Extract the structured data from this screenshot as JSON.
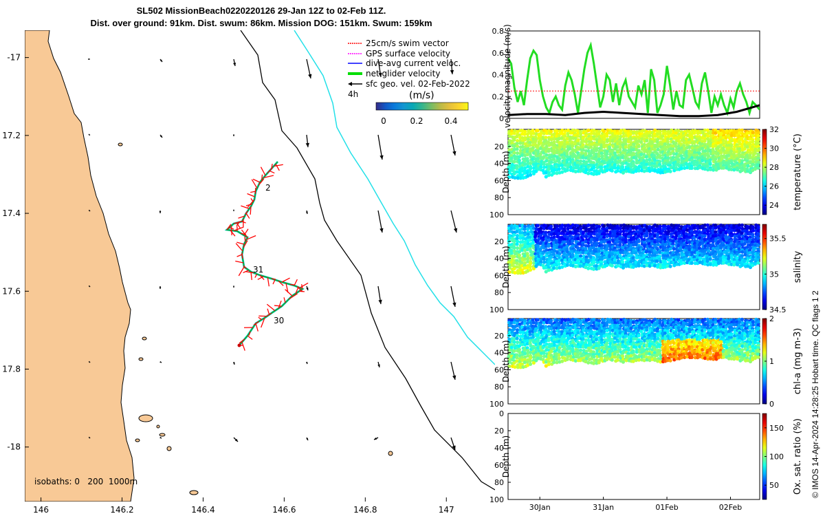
{
  "header": {
    "title_line1": "SL502 MissionBeach0220220126 29-Jan 12Z to 02-Feb 11Z.",
    "title_line2": "Dist. over ground: 91km. Dist. swum: 86km. Mission DOG: 151km. Swum: 159km"
  },
  "side_note": "© IMOS 14-Apr-2024 14:28:25 Hobart time. QC flags 1  2",
  "chart_data": [
    {
      "type": "map",
      "xticks": [
        "146",
        "146.2",
        "146.4",
        "146.6",
        "146.8",
        "147"
      ],
      "yticks": [
        "-17",
        "17.2",
        "17.4",
        "17.6",
        "17.8",
        "-18"
      ],
      "xlim": [
        145.96,
        147.12
      ],
      "ylim": [
        -18.14,
        -16.93
      ],
      "legend": {
        "entries": [
          {
            "label": "25cm/s swim vector",
            "color": "#ff0000"
          },
          {
            "label": "GPS surface velocity",
            "color": "#ff00ff"
          },
          {
            "label": "dive-avg current veloc.",
            "color": "#0000ff"
          },
          {
            "label": "net glider velocity",
            "color": "#00dd00"
          },
          {
            "label": "sfc geo. vel. 02-Feb-2022",
            "color": "#000000"
          }
        ],
        "scale_label": "4h",
        "colorbar_title": "(m/s)",
        "colorbar_ticks": [
          "0",
          "0.2",
          "0.4"
        ],
        "placement": "top-right"
      },
      "track_labels": [
        "2",
        "31",
        "30"
      ],
      "isobath_label": "isobaths: 0   200  1000m",
      "colors": {
        "land": "#f8c996",
        "isobath_200": "#000000",
        "isobath_1000": "#22e0e8",
        "track": "#ff0000"
      }
    },
    {
      "type": "line",
      "ylabel": "velocity magnitude (m/s)",
      "ylim": [
        0,
        0.8
      ],
      "yticks": [
        "0",
        "0.2",
        "0.4",
        "0.6",
        "0.8"
      ],
      "x_range_days": [
        29.5,
        33.46
      ],
      "series": [
        {
          "color": "#22dd22",
          "x": [
            29.5,
            29.55,
            29.6,
            29.65,
            29.7,
            29.75,
            29.8,
            29.85,
            29.9,
            29.95,
            30.0,
            30.05,
            30.1,
            30.15,
            30.2,
            30.25,
            30.3,
            30.35,
            30.4,
            30.45,
            30.5,
            30.55,
            30.6,
            30.65,
            30.7,
            30.75,
            30.8,
            30.85,
            30.9,
            30.95,
            31.0,
            31.05,
            31.1,
            31.15,
            31.2,
            31.25,
            31.3,
            31.35,
            31.4,
            31.45,
            31.5,
            31.55,
            31.6,
            31.65,
            31.7,
            31.75,
            31.8,
            31.85,
            31.9,
            31.95,
            32.0,
            32.05,
            32.1,
            32.15,
            32.2,
            32.25,
            32.3,
            32.35,
            32.4,
            32.45,
            32.5,
            32.55,
            32.6,
            32.65,
            32.7,
            32.75,
            32.8,
            32.85,
            32.9,
            32.95,
            33.0,
            33.05,
            33.1,
            33.15,
            33.2,
            33.25,
            33.3,
            33.35,
            33.4,
            33.46
          ],
          "y": [
            0.55,
            0.5,
            0.28,
            0.15,
            0.25,
            0.12,
            0.35,
            0.55,
            0.62,
            0.58,
            0.35,
            0.2,
            0.1,
            0.05,
            0.15,
            0.2,
            0.12,
            0.08,
            0.3,
            0.42,
            0.35,
            0.22,
            0.05,
            0.25,
            0.45,
            0.6,
            0.67,
            0.5,
            0.3,
            0.1,
            0.2,
            0.4,
            0.35,
            0.15,
            0.32,
            0.12,
            0.28,
            0.35,
            0.2,
            0.15,
            0.1,
            0.3,
            0.22,
            0.35,
            0.05,
            0.45,
            0.35,
            0.05,
            0.12,
            0.22,
            0.48,
            0.3,
            0.08,
            0.25,
            0.12,
            0.1,
            0.35,
            0.4,
            0.28,
            0.15,
            0.1,
            0.32,
            0.42,
            0.25,
            0.05,
            0.2,
            0.12,
            0.22,
            0.12,
            0.05,
            0.18,
            0.1,
            0.25,
            0.32,
            0.22,
            0.15,
            0.05,
            0.15,
            0.12,
            0.08
          ]
        },
        {
          "color": "#000000",
          "x": [
            29.5,
            29.8,
            30.1,
            30.4,
            30.7,
            31.0,
            31.3,
            31.6,
            31.9,
            32.2,
            32.5,
            32.8,
            33.1,
            33.46
          ],
          "y": [
            0.03,
            0.04,
            0.04,
            0.03,
            0.05,
            0.06,
            0.05,
            0.04,
            0.03,
            0.02,
            0.02,
            0.03,
            0.06,
            0.12
          ]
        },
        {
          "color": "#ff0000",
          "dashed": true,
          "x": [
            29.5,
            33.46
          ],
          "y": [
            0.25,
            0.25
          ]
        }
      ]
    },
    {
      "type": "scatter",
      "ylabel": "Depth (m)",
      "yticks": [
        "20",
        "40",
        "60",
        "80",
        "100"
      ],
      "ylim": [
        100,
        0
      ],
      "colorbar_label": "temperature (°C)",
      "colorbar_ticks": [
        "24",
        "26",
        "28",
        "30",
        "32"
      ],
      "color_range": [
        23,
        32
      ],
      "x_range_days": [
        29.5,
        33.46
      ],
      "profile_bottom_x": [
        29.5,
        29.7,
        29.9,
        30.0,
        30.1,
        30.3,
        30.5,
        30.7,
        30.9,
        31.1,
        31.3,
        31.5,
        31.7,
        31.9,
        32.1,
        32.3,
        32.5,
        32.7,
        32.9,
        33.1,
        33.3,
        33.46
      ],
      "profile_bottom_depth": [
        55,
        58,
        52,
        45,
        55,
        50,
        48,
        50,
        52,
        48,
        50,
        50,
        48,
        50,
        48,
        45,
        45,
        48,
        45,
        48,
        50,
        45
      ]
    },
    {
      "type": "scatter",
      "ylabel": "Depth (m)",
      "yticks": [
        "20",
        "40",
        "60",
        "80",
        "100"
      ],
      "ylim": [
        100,
        0
      ],
      "colorbar_label": "salinity",
      "colorbar_ticks": [
        "34.5",
        "35",
        "35.5"
      ],
      "color_range": [
        34.5,
        35.7
      ],
      "x_range_days": [
        29.5,
        33.46
      ]
    },
    {
      "type": "scatter",
      "ylabel": "Depth (m)",
      "yticks": [
        "20",
        "40",
        "60",
        "80",
        "100"
      ],
      "ylim": [
        100,
        0
      ],
      "colorbar_label": "chl-a (mg m-3)",
      "colorbar_ticks": [
        "0",
        "1",
        "2"
      ],
      "color_range": [
        0,
        2
      ],
      "x_range_days": [
        29.5,
        33.46
      ]
    },
    {
      "type": "scatter",
      "ylabel": "Depth (m)",
      "yticks": [
        "0",
        "20",
        "40",
        "60",
        "80",
        "100"
      ],
      "ylim": [
        100,
        0
      ],
      "colorbar_label": "Ox. sat. ratio (%)",
      "colorbar_ticks": [
        "50",
        "100",
        "150"
      ],
      "color_range": [
        25,
        175
      ],
      "xticks": [
        "30Jan",
        "31Jan",
        "01Feb",
        "02Feb"
      ],
      "xtick_values": [
        30,
        31,
        32,
        33
      ],
      "x_range_days": [
        29.5,
        33.46
      ]
    }
  ]
}
